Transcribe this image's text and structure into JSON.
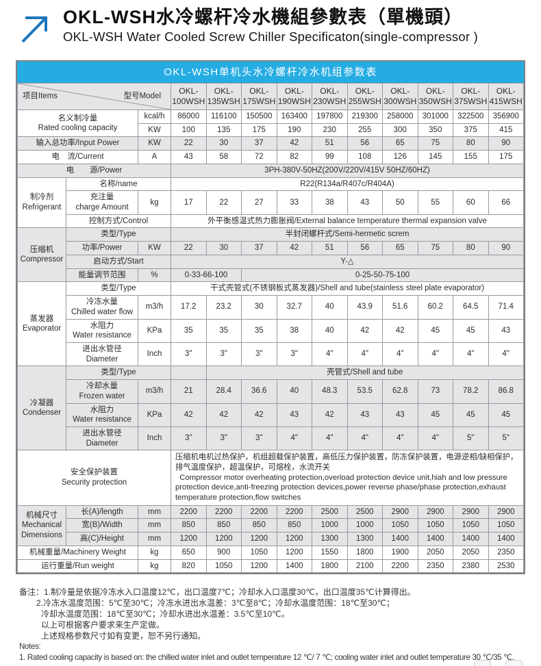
{
  "page": {
    "title_zh": "OKL-WSH水冷螺杆冷水機組參數表（單機頭）",
    "title_en": "OKL-WSH Water Cooled Screw Chiller Specificaton(single-compressor )"
  },
  "colors": {
    "caption_bg": "#25ACE3",
    "logo_blue": "#1C75BB",
    "shade_gray": "#E4E5E6",
    "grid_line": "#97999D"
  },
  "table": {
    "caption": "OKL-WSH单机头水冷螺杆冷水机组参数表",
    "header": {
      "items_label": "项目Items",
      "model_label": "型号Model",
      "model_prefix": "OKL-",
      "models": [
        "100WSH",
        "135WSH",
        "175WSH",
        "190WSH",
        "230WSH",
        "255WSH",
        "300WSH",
        "350WSH",
        "375WSH",
        "415WSH"
      ]
    },
    "rows": [
      {
        "s": "w",
        "c": [
          {
            "t": "名义制冷量\nRated cooling capacity",
            "c": 2,
            "r": 2,
            "k": "lab"
          },
          {
            "t": "kcal/h",
            "k": "unit"
          },
          {
            "t": "86000"
          },
          {
            "t": "116100"
          },
          {
            "t": "150500"
          },
          {
            "t": "163400"
          },
          {
            "t": "197800"
          },
          {
            "t": "219300"
          },
          {
            "t": "258000"
          },
          {
            "t": "301000"
          },
          {
            "t": "322500"
          },
          {
            "t": "356900"
          }
        ]
      },
      {
        "s": "w",
        "c": [
          {
            "t": "KW",
            "k": "unit"
          },
          {
            "t": "100"
          },
          {
            "t": "135"
          },
          {
            "t": "175"
          },
          {
            "t": "190"
          },
          {
            "t": "230"
          },
          {
            "t": "255"
          },
          {
            "t": "300"
          },
          {
            "t": "350"
          },
          {
            "t": "375"
          },
          {
            "t": "415"
          }
        ]
      },
      {
        "s": "g",
        "c": [
          {
            "t": "输入总功率/Input Power",
            "c": 2,
            "k": "lab"
          },
          {
            "t": "KW",
            "k": "unit"
          },
          {
            "t": "22"
          },
          {
            "t": "30"
          },
          {
            "t": "37"
          },
          {
            "t": "42"
          },
          {
            "t": "51"
          },
          {
            "t": "56"
          },
          {
            "t": "65"
          },
          {
            "t": "75"
          },
          {
            "t": "80"
          },
          {
            "t": "90"
          }
        ]
      },
      {
        "s": "w",
        "c": [
          {
            "t": "电　流/Current",
            "c": 2,
            "k": "lab"
          },
          {
            "t": "A",
            "k": "unit"
          },
          {
            "t": "43"
          },
          {
            "t": "58"
          },
          {
            "t": "72"
          },
          {
            "t": "82"
          },
          {
            "t": "99"
          },
          {
            "t": "108"
          },
          {
            "t": "126"
          },
          {
            "t": "145"
          },
          {
            "t": "155"
          },
          {
            "t": "175"
          }
        ]
      },
      {
        "s": "g",
        "c": [
          {
            "t": "电　　源/Power",
            "c": 3,
            "k": "lab"
          },
          {
            "t": "3PH-380V-50HZ(200V/220V/415V  50HZ/60HZ)",
            "c": 10,
            "k": "mval"
          }
        ]
      },
      {
        "s": "w",
        "c": [
          {
            "t": "制冷剂\nRefrigerant",
            "r": 3,
            "k": "sec"
          },
          {
            "t": "名称/name",
            "c": 2,
            "k": "lab"
          },
          {
            "t": "R22(R134a/R407c/R404A)",
            "c": 10,
            "k": "mval"
          }
        ]
      },
      {
        "s": "w",
        "c": [
          {
            "t": "充注量\ncharge Amount",
            "k": "lab"
          },
          {
            "t": "kg",
            "k": "unit"
          },
          {
            "t": "17"
          },
          {
            "t": "22"
          },
          {
            "t": "27"
          },
          {
            "t": "33"
          },
          {
            "t": "38"
          },
          {
            "t": "43"
          },
          {
            "t": "50"
          },
          {
            "t": "55"
          },
          {
            "t": "60"
          },
          {
            "t": "66"
          }
        ]
      },
      {
        "s": "w",
        "c": [
          {
            "t": "控制方式/Control",
            "c": 2,
            "k": "lab"
          },
          {
            "t": "外平衡感温式热力膨胀阀/External balance temperature thermal expansion valve",
            "c": 10,
            "k": "mval"
          }
        ]
      },
      {
        "s": "g",
        "c": [
          {
            "t": "压缩机\nCompressor",
            "r": 4,
            "k": "sec"
          },
          {
            "t": "类型/Type",
            "c": 2,
            "k": "lab"
          },
          {
            "t": "半封闭螺杆式/Semi-hermetic screm",
            "c": 10,
            "k": "mval"
          }
        ]
      },
      {
        "s": "g",
        "c": [
          {
            "t": "功率/Power",
            "k": "lab"
          },
          {
            "t": "KW",
            "k": "unit"
          },
          {
            "t": "22"
          },
          {
            "t": "30"
          },
          {
            "t": "37"
          },
          {
            "t": "42"
          },
          {
            "t": "51"
          },
          {
            "t": "56"
          },
          {
            "t": "65"
          },
          {
            "t": "75"
          },
          {
            "t": "80"
          },
          {
            "t": "90"
          }
        ]
      },
      {
        "s": "g",
        "c": [
          {
            "t": "启动方式/Start",
            "c": 2,
            "k": "lab"
          },
          {
            "t": "Y-△",
            "c": 10,
            "k": "mval"
          }
        ]
      },
      {
        "s": "g",
        "c": [
          {
            "t": "能量调节范围",
            "k": "lab"
          },
          {
            "t": "%",
            "k": "unit"
          },
          {
            "t": "0-33-66-100",
            "c": 2,
            "k": "mval"
          },
          {
            "t": "0-25-50-75-100",
            "c": 8,
            "k": "mval"
          }
        ]
      },
      {
        "s": "w",
        "c": [
          {
            "t": "蒸发器\nEvaporator",
            "r": 4,
            "k": "sec"
          },
          {
            "t": "类型/Type",
            "c": 2,
            "k": "lab"
          },
          {
            "t": "干式壳管式(不锈钢板式蒸发器)/Shell and tube(stainless steel plate evaporator)",
            "c": 10,
            "k": "mval"
          }
        ]
      },
      {
        "s": "w",
        "c": [
          {
            "t": "冷冻水量\nChilled water flow",
            "k": "lab"
          },
          {
            "t": "m3/h",
            "k": "unit"
          },
          {
            "t": "17.2"
          },
          {
            "t": "23.2"
          },
          {
            "t": "30"
          },
          {
            "t": "32.7"
          },
          {
            "t": "40"
          },
          {
            "t": "43.9"
          },
          {
            "t": "51.6"
          },
          {
            "t": "60.2"
          },
          {
            "t": "64.5"
          },
          {
            "t": "71.4"
          }
        ]
      },
      {
        "s": "w",
        "c": [
          {
            "t": "水阻力\nWater resistance",
            "k": "lab"
          },
          {
            "t": "KPa",
            "k": "unit"
          },
          {
            "t": "35"
          },
          {
            "t": "35"
          },
          {
            "t": "35"
          },
          {
            "t": "38"
          },
          {
            "t": "40"
          },
          {
            "t": "42"
          },
          {
            "t": "42"
          },
          {
            "t": "45"
          },
          {
            "t": "45"
          },
          {
            "t": "43"
          }
        ]
      },
      {
        "s": "w",
        "c": [
          {
            "t": "进出水管径\nDiameter",
            "k": "lab"
          },
          {
            "t": "Inch",
            "k": "unit"
          },
          {
            "t": "3\""
          },
          {
            "t": "3\""
          },
          {
            "t": "3\""
          },
          {
            "t": "3\""
          },
          {
            "t": "4\""
          },
          {
            "t": "4\""
          },
          {
            "t": "4\""
          },
          {
            "t": "4\""
          },
          {
            "t": "4\""
          },
          {
            "t": "4\""
          }
        ]
      },
      {
        "s": "g",
        "c": [
          {
            "t": "冷凝器\nCondenser",
            "r": 4,
            "k": "sec"
          },
          {
            "t": "类型/Type",
            "c": 2,
            "k": "lab"
          },
          {
            "t": "",
            "c": 1,
            "k": "mval"
          },
          {
            "t": "壳管式/Shell and tube",
            "c": 9,
            "k": "mval"
          }
        ]
      },
      {
        "s": "g",
        "c": [
          {
            "t": "冷却水量\nFrozen water",
            "k": "lab"
          },
          {
            "t": "m3/h",
            "k": "unit"
          },
          {
            "t": "21"
          },
          {
            "t": "28.4"
          },
          {
            "t": "36.6"
          },
          {
            "t": "40"
          },
          {
            "t": "48.3"
          },
          {
            "t": "53.5"
          },
          {
            "t": "62.8"
          },
          {
            "t": "73"
          },
          {
            "t": "78.2"
          },
          {
            "t": "86.8"
          }
        ]
      },
      {
        "s": "g",
        "c": [
          {
            "t": "水阻力\nWater resistance",
            "k": "lab"
          },
          {
            "t": "KPa",
            "k": "unit"
          },
          {
            "t": "42"
          },
          {
            "t": "42"
          },
          {
            "t": "42"
          },
          {
            "t": "43"
          },
          {
            "t": "42"
          },
          {
            "t": "43"
          },
          {
            "t": "43"
          },
          {
            "t": "45"
          },
          {
            "t": "45"
          },
          {
            "t": "45"
          }
        ]
      },
      {
        "s": "g",
        "c": [
          {
            "t": "进出水管径\nDiameter",
            "k": "lab"
          },
          {
            "t": "Inch",
            "k": "unit"
          },
          {
            "t": "3\""
          },
          {
            "t": "3\""
          },
          {
            "t": "3\""
          },
          {
            "t": "4\""
          },
          {
            "t": "4\""
          },
          {
            "t": "4\""
          },
          {
            "t": "4\""
          },
          {
            "t": "4\""
          },
          {
            "t": "5\""
          },
          {
            "t": "5\""
          }
        ]
      },
      {
        "s": "w",
        "c": [
          {
            "t": "安全保护装置\nSecurity protection",
            "c": 3,
            "k": "lab"
          },
          {
            "t": "压缩机电机过热保护，机组超载保护装置，高低压力保护装置，防冻保护装置，电源逆相/缺相保护，排气温度保护，超温保护，可熔栓，水流开关\n  Compressor motor overheating protection,overload protection device unit,hiah and low pressure protection device,anti-freezing protection devices,power reverse phase/phase protection,exhaust temperature protection,flow switches",
            "c": 10,
            "k": "prot"
          }
        ]
      },
      {
        "s": "g",
        "c": [
          {
            "t": "机械尺寸\nMechanical\nDimensions",
            "r": 3,
            "k": "sec"
          },
          {
            "t": "长(A)/length",
            "k": "lab"
          },
          {
            "t": "mm",
            "k": "unit"
          },
          {
            "t": "2200"
          },
          {
            "t": "2200"
          },
          {
            "t": "2200"
          },
          {
            "t": "2200"
          },
          {
            "t": "2500"
          },
          {
            "t": "2500"
          },
          {
            "t": "2900"
          },
          {
            "t": "2900"
          },
          {
            "t": "2900"
          },
          {
            "t": "2900"
          }
        ]
      },
      {
        "s": "g",
        "c": [
          {
            "t": "宽(B)/Width",
            "k": "lab"
          },
          {
            "t": "mm",
            "k": "unit"
          },
          {
            "t": "850"
          },
          {
            "t": "850"
          },
          {
            "t": "850"
          },
          {
            "t": "850"
          },
          {
            "t": "1000"
          },
          {
            "t": "1000"
          },
          {
            "t": "1050"
          },
          {
            "t": "1050"
          },
          {
            "t": "1050"
          },
          {
            "t": "1050"
          }
        ]
      },
      {
        "s": "g",
        "c": [
          {
            "t": "高(C)/Height",
            "k": "lab"
          },
          {
            "t": "mm",
            "k": "unit"
          },
          {
            "t": "1200"
          },
          {
            "t": "1200"
          },
          {
            "t": "1200"
          },
          {
            "t": "1200"
          },
          {
            "t": "1300"
          },
          {
            "t": "1300"
          },
          {
            "t": "1400"
          },
          {
            "t": "1400"
          },
          {
            "t": "1400"
          },
          {
            "t": "1400"
          }
        ]
      },
      {
        "s": "w",
        "c": [
          {
            "t": "机械重量/Machinery Weight",
            "c": 2,
            "k": "lab"
          },
          {
            "t": "kg",
            "k": "unit"
          },
          {
            "t": "650"
          },
          {
            "t": "900"
          },
          {
            "t": "1050"
          },
          {
            "t": "1200"
          },
          {
            "t": "1550"
          },
          {
            "t": "1800"
          },
          {
            "t": "1900"
          },
          {
            "t": "2050"
          },
          {
            "t": "2050"
          },
          {
            "t": "2350"
          }
        ]
      },
      {
        "s": "w",
        "c": [
          {
            "t": "运行重量/Run weight",
            "c": 2,
            "k": "lab"
          },
          {
            "t": "kg",
            "k": "unit"
          },
          {
            "t": "820"
          },
          {
            "t": "1050"
          },
          {
            "t": "1200"
          },
          {
            "t": "1400"
          },
          {
            "t": "1800"
          },
          {
            "t": "2100"
          },
          {
            "t": "2200"
          },
          {
            "t": "2350"
          },
          {
            "t": "2380"
          },
          {
            "t": "2530"
          }
        ]
      }
    ]
  },
  "notes": {
    "lines": [
      {
        "text": "备注：1.制冷量是依据冷冻水入口温度12℃，出口温度7℃；冷却水入口温度30℃，出口温度35℃计算得出。",
        "indent": 0,
        "en": false
      },
      {
        "text": "2.冷冻水温度范围：5℃至30℃；冷冻水进出水温差：3℃至8℃；冷却水温度范围：18℃至30℃；",
        "indent": 1,
        "en": false
      },
      {
        "text": "冷却水温度范围：18℃至30℃；冷却水进出水温差：3.5℃至10℃。",
        "indent": 2,
        "en": false
      },
      {
        "text": "以上可根据客户要求来生产定做。",
        "indent": 2,
        "en": false
      },
      {
        "text": "上述规格参数尺寸如有变更，恕不另行通知。",
        "indent": 2,
        "en": false
      },
      {
        "text": "Notes:",
        "indent": 0,
        "en": true
      },
      {
        "text": "1. Rated cooling capacity is based on: the chilled water inlet and outlet temperature 12 ℃/ 7 ℃; cooling water inlet and outlet temperature 30 ℃/35 ℃.",
        "indent": 0,
        "en": true
      }
    ]
  }
}
